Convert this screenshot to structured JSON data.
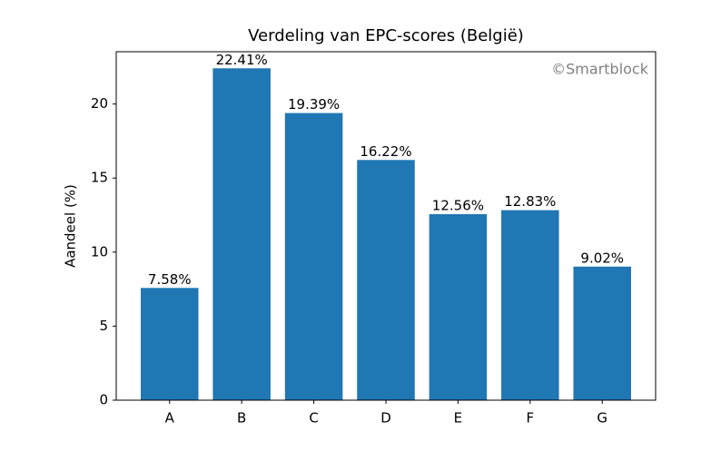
{
  "chart_data": {
    "type": "bar",
    "title": "Verdeling van EPC-scores (België)",
    "ylabel": "Aandeel (%)",
    "annotation": "©Smartblock",
    "categories": [
      "A",
      "B",
      "C",
      "D",
      "E",
      "F",
      "G"
    ],
    "values": [
      7.58,
      22.41,
      19.39,
      16.22,
      12.56,
      12.83,
      9.02
    ],
    "value_labels": [
      "7.58%",
      "22.41%",
      "19.39%",
      "16.22%",
      "12.56%",
      "12.83%",
      "9.02%"
    ],
    "color": "#1f77b4",
    "ylim": [
      0,
      23.53
    ],
    "yticks": [
      0,
      5,
      10,
      15,
      20
    ],
    "grid": false
  }
}
